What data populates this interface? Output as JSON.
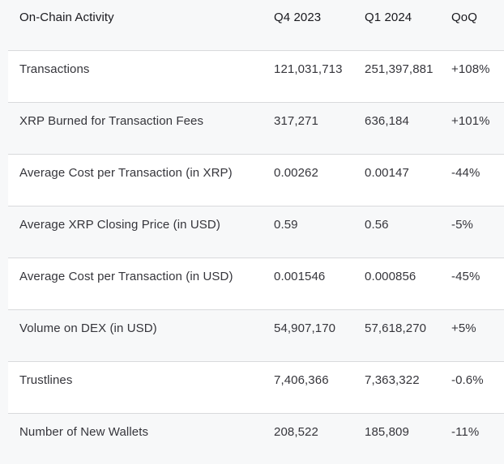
{
  "chart_data": {
    "type": "table",
    "title": "On-Chain Activity",
    "columns": [
      "On-Chain Activity",
      "Q4 2023",
      "Q1 2024",
      "QoQ"
    ],
    "rows": [
      {
        "label": "Transactions",
        "q4": "121,031,713",
        "q1": "251,397,881",
        "qoq": "+108%"
      },
      {
        "label": "XRP Burned for Transaction Fees",
        "q4": "317,271",
        "q1": "636,184",
        "qoq": "+101%"
      },
      {
        "label": "Average Cost per Transaction (in XRP)",
        "q4": "0.00262",
        "q1": "0.00147",
        "qoq": "-44%"
      },
      {
        "label": "Average XRP Closing Price (in USD)",
        "q4": "0.59",
        "q1": "0.56",
        "qoq": "-5%"
      },
      {
        "label": "Average Cost per Transaction (in USD)",
        "q4": "0.001546",
        "q1": "0.000856",
        "qoq": "-45%"
      },
      {
        "label": "Volume on DEX (in USD)",
        "q4": "54,907,170",
        "q1": "57,618,270",
        "qoq": "+5%"
      },
      {
        "label": "Trustlines",
        "q4": "7,406,366",
        "q1": "7,363,322",
        "qoq": "-0.6%"
      },
      {
        "label": "Number of New Wallets",
        "q4": "208,522",
        "q1": "185,809",
        "qoq": "-11%"
      }
    ]
  },
  "colors": {
    "page_bg": "#f7f8f9",
    "row_white": "#ffffff",
    "row_alt": "#f7f8f9",
    "divider": "#d9dadc",
    "header_text": "#18181d",
    "body_text": "#35353b"
  }
}
